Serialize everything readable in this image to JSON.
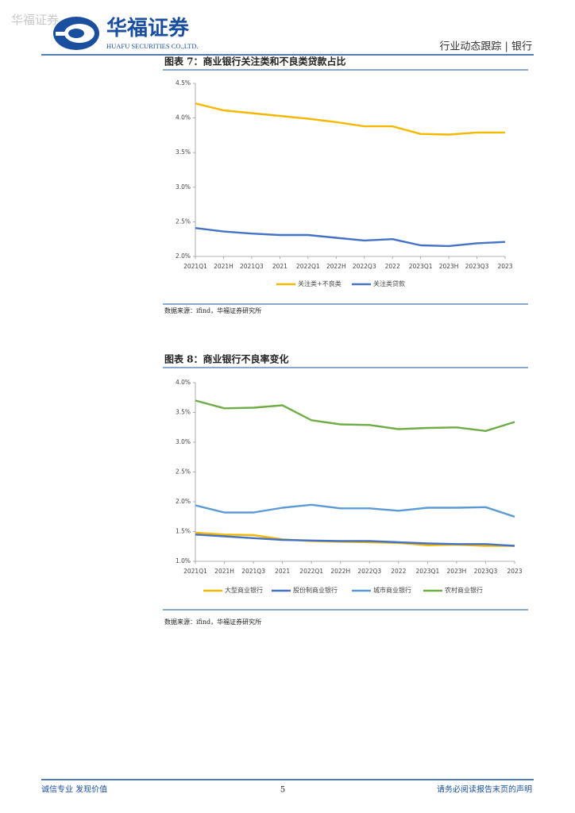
{
  "header": {
    "watermark": "华福证券",
    "logo_cn": "华福证券",
    "logo_en": "HUAFU SECURITIES CO.,LTD.",
    "report_type": "行业动态跟踪 | 银行"
  },
  "chart_data": [
    {
      "type": "line",
      "title": "图表 7：商业银行关注类和不良类贷款占比",
      "categories": [
        "2021Q1",
        "2021H",
        "2021Q3",
        "2021",
        "2022Q1",
        "2022H",
        "2022Q3",
        "2022",
        "2023Q1",
        "2023H",
        "2023Q3",
        "2023"
      ],
      "series": [
        {
          "name": "关注类+不良类",
          "color": "#f5b800",
          "values": [
            4.21,
            4.11,
            4.07,
            4.03,
            3.99,
            3.94,
            3.88,
            3.88,
            3.77,
            3.76,
            3.79,
            3.79
          ]
        },
        {
          "name": "关注类贷款",
          "color": "#4472c4",
          "values": [
            2.41,
            2.36,
            2.33,
            2.31,
            2.31,
            2.27,
            2.23,
            2.25,
            2.16,
            2.15,
            2.19,
            2.21
          ]
        }
      ],
      "ylim": [
        2.0,
        4.5
      ],
      "yticks": [
        {
          "value": 2.0,
          "label": "2.0%"
        },
        {
          "value": 2.5,
          "label": "2.5%"
        },
        {
          "value": 3.0,
          "label": "3.0%"
        },
        {
          "value": 3.5,
          "label": "3.5%"
        },
        {
          "value": 4.0,
          "label": "4.0%"
        },
        {
          "value": 4.5,
          "label": "4.5%"
        }
      ],
      "grid": false,
      "legend": "bottom",
      "source": "数据来源：ifind，华福证券研究所"
    },
    {
      "type": "line",
      "title": "图表 8：商业银行不良率变化",
      "categories": [
        "2021Q1",
        "2021H",
        "2021Q3",
        "2021",
        "2022Q1",
        "2022H",
        "2022Q3",
        "2022",
        "2023Q1",
        "2023H",
        "2023Q3",
        "2023"
      ],
      "series": [
        {
          "name": "大型商业银行",
          "color": "#f5b800",
          "values": [
            1.48,
            1.45,
            1.44,
            1.37,
            1.34,
            1.33,
            1.32,
            1.31,
            1.27,
            1.28,
            1.26,
            1.26
          ]
        },
        {
          "name": "股份制商业银行",
          "color": "#4472c4",
          "values": [
            1.45,
            1.42,
            1.39,
            1.36,
            1.35,
            1.34,
            1.34,
            1.32,
            1.3,
            1.29,
            1.29,
            1.26
          ]
        },
        {
          "name": "城市商业银行",
          "color": "#5b9bd5",
          "values": [
            1.94,
            1.82,
            1.82,
            1.9,
            1.95,
            1.89,
            1.89,
            1.85,
            1.9,
            1.9,
            1.91,
            1.75
          ]
        },
        {
          "name": "农村商业银行",
          "color": "#70ad47",
          "values": [
            3.7,
            3.57,
            3.58,
            3.62,
            3.37,
            3.3,
            3.29,
            3.22,
            3.24,
            3.25,
            3.19,
            3.34
          ]
        }
      ],
      "ylim": [
        1.0,
        4.0
      ],
      "yticks": [
        {
          "value": 1.0,
          "label": "1.0%"
        },
        {
          "value": 1.5,
          "label": "1.5%"
        },
        {
          "value": 2.0,
          "label": "2.0%"
        },
        {
          "value": 2.5,
          "label": "2.5%"
        },
        {
          "value": 3.0,
          "label": "3.0%"
        },
        {
          "value": 3.5,
          "label": "3.5%"
        },
        {
          "value": 4.0,
          "label": "4.0%"
        }
      ],
      "grid": false,
      "legend": "bottom",
      "source": "数据来源：ifind，华福证券研究所"
    }
  ],
  "footer": {
    "slogan": "诚信专业  发现价值",
    "page": "5",
    "disclaimer": "请务必阅读报告末页的声明"
  }
}
